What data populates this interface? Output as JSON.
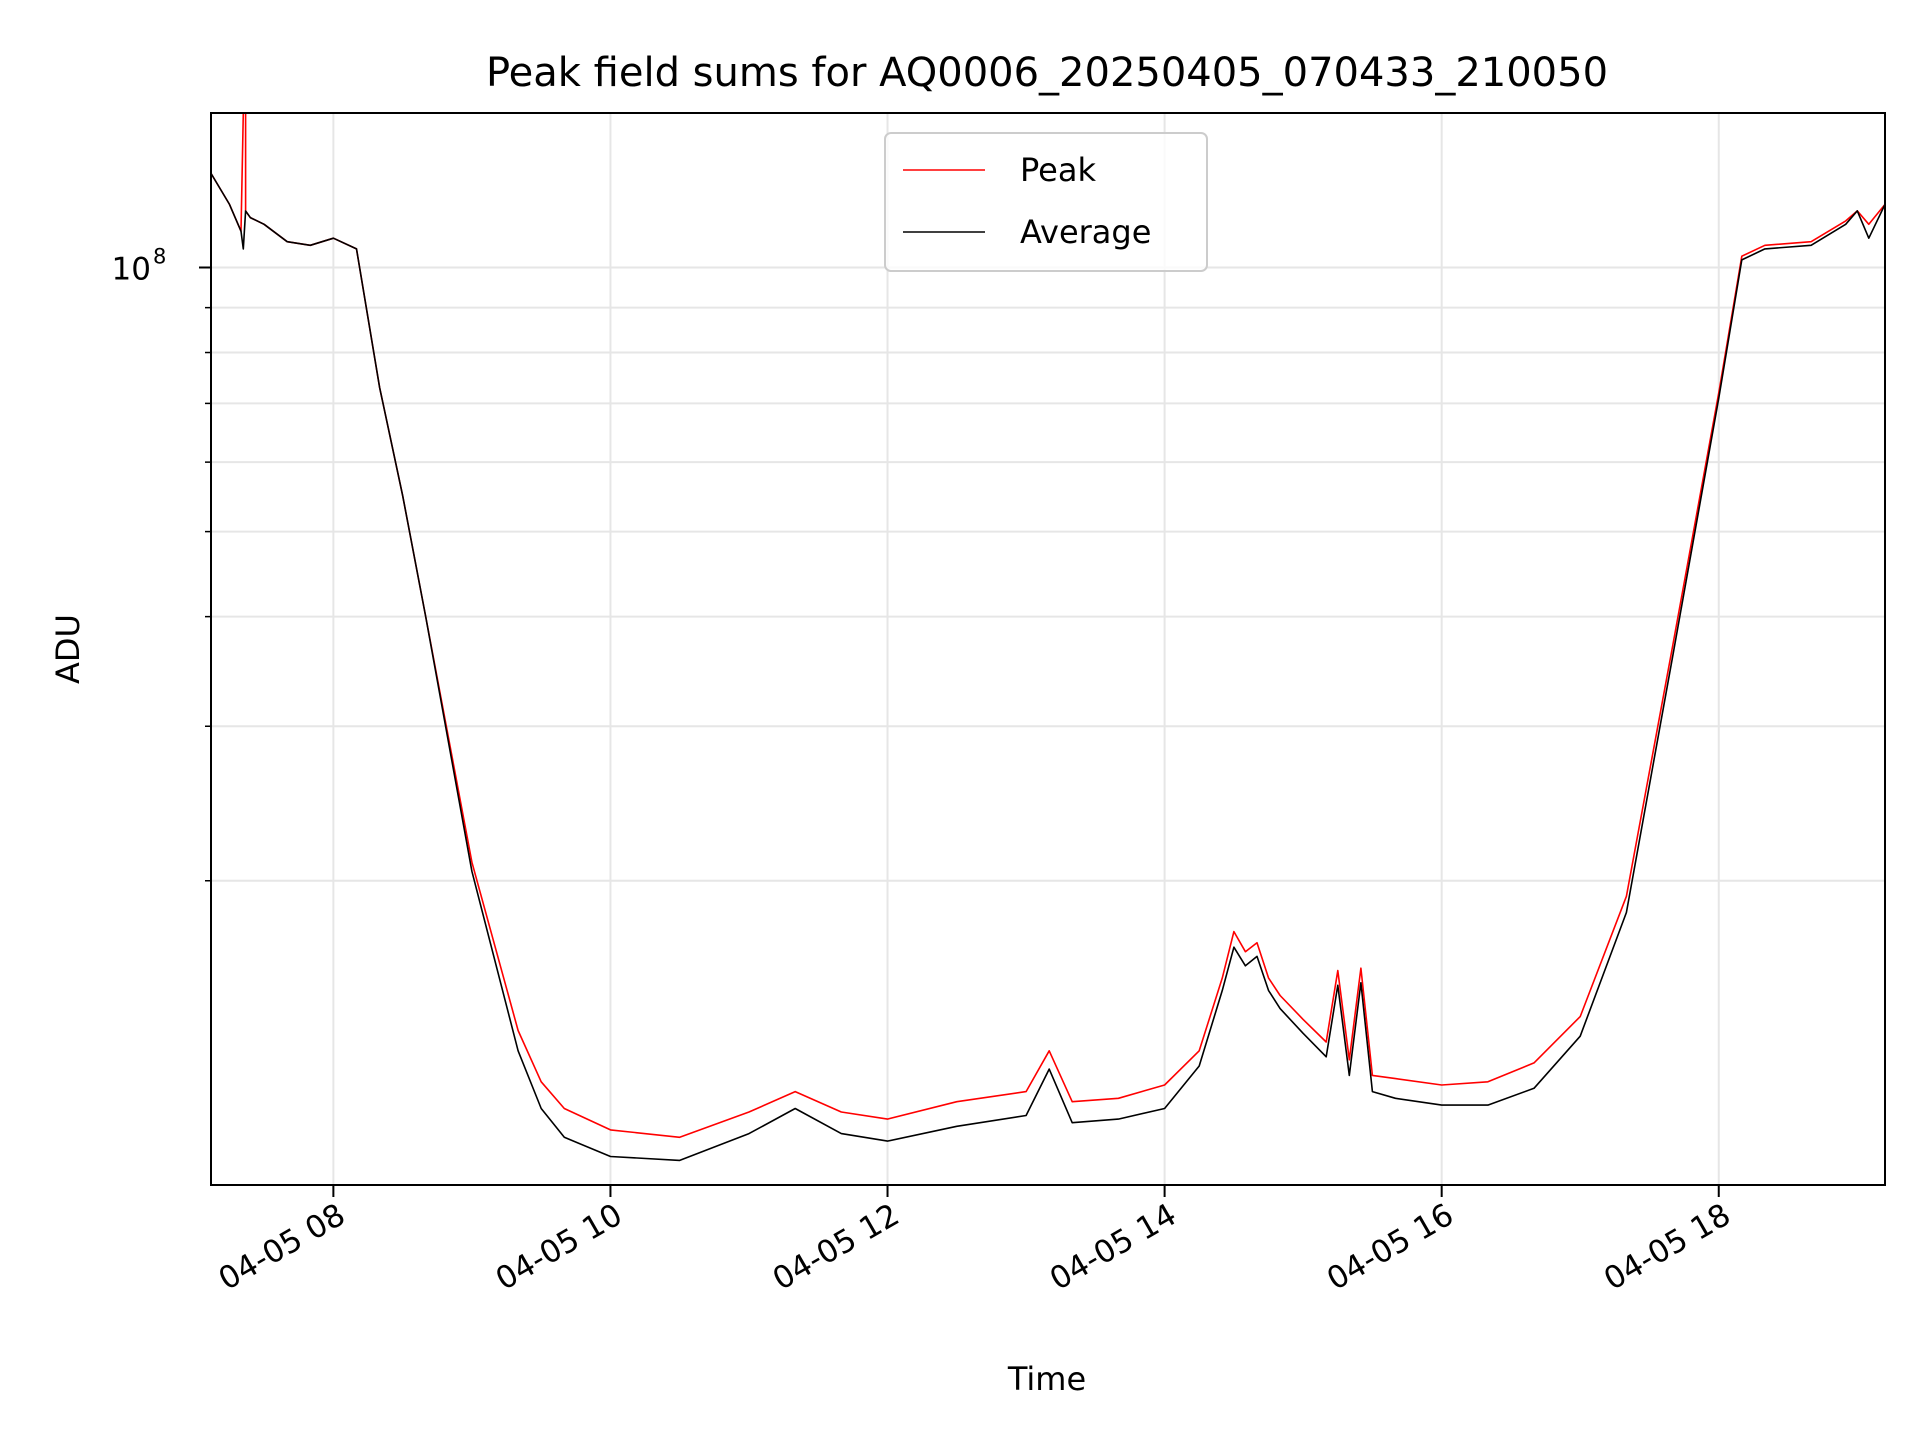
{
  "chart_data": {
    "type": "line",
    "title": "Peak field sums for AQ0006_20250405_070433_210050",
    "xlabel": "Time",
    "ylabel": "ADU",
    "x_scale": "time",
    "y_scale": "log",
    "xlim": [
      "04-05 07:07",
      "04-05 19:12"
    ],
    "ylim": [
      9000000,
      150000000
    ],
    "x_ticks": [
      {
        "t": "04-05 08:00",
        "label": "04-05 08"
      },
      {
        "t": "04-05 10:00",
        "label": "04-05 10"
      },
      {
        "t": "04-05 12:00",
        "label": "04-05 12"
      },
      {
        "t": "04-05 14:00",
        "label": "04-05 14"
      },
      {
        "t": "04-05 16:00",
        "label": "04-05 16"
      },
      {
        "t": "04-05 18:00",
        "label": "04-05 18"
      }
    ],
    "y_ticks": [
      {
        "value": 100000000,
        "base": "10",
        "exp": "8"
      }
    ],
    "y_minor_ticks": [
      20000000,
      30000000,
      40000000,
      50000000,
      60000000,
      70000000,
      80000000,
      90000000
    ],
    "grid": true,
    "legend": {
      "placement": "top-center",
      "entries": [
        {
          "name": "Peak",
          "color": "#ff0000"
        },
        {
          "name": "Average",
          "color": "#000000"
        }
      ]
    },
    "series": [
      {
        "name": "Peak",
        "color": "#ff0000",
        "x": [
          "04-05 07:07",
          "04-05 07:15",
          "04-05 07:20",
          "04-05 07:21",
          "04-05 07:22",
          "04-05 07:22",
          "04-05 07:23",
          "04-05 07:24",
          "04-05 07:30",
          "04-05 07:40",
          "04-05 07:50",
          "04-05 08:00",
          "04-05 08:10",
          "04-05 08:20",
          "04-05 08:30",
          "04-05 08:40",
          "04-05 09:00",
          "04-05 09:20",
          "04-05 09:30",
          "04-05 09:40",
          "04-05 10:00",
          "04-05 10:30",
          "04-05 11:00",
          "04-05 11:20",
          "04-05 11:40",
          "04-05 12:00",
          "04-05 12:30",
          "04-05 13:00",
          "04-05 13:10",
          "04-05 13:20",
          "04-05 13:40",
          "04-05 14:00",
          "04-05 14:15",
          "04-05 14:25",
          "04-05 14:30",
          "04-05 14:35",
          "04-05 14:40",
          "04-05 14:45",
          "04-05 14:50",
          "04-05 15:00",
          "04-05 15:10",
          "04-05 15:15",
          "04-05 15:20",
          "04-05 15:25",
          "04-05 15:30",
          "04-05 15:40",
          "04-05 16:00",
          "04-05 16:20",
          "04-05 16:40",
          "04-05 17:00",
          "04-05 17:20",
          "04-05 17:40",
          "04-05 18:00",
          "04-05 18:10",
          "04-05 18:20",
          "04-05 18:40",
          "04-05 18:55",
          "04-05 19:00",
          "04-05 19:05",
          "04-05 19:12"
        ],
        "values": [
          128000000,
          118000000,
          110000000,
          150000000,
          150000000,
          116000000,
          115000000,
          114000000,
          112000000,
          107000000,
          106000000,
          108000000,
          105000000,
          73000000,
          55000000,
          40000000,
          21000000,
          13500000,
          11800000,
          11000000,
          10400000,
          10200000,
          10900000,
          11500000,
          10900000,
          10700000,
          11200000,
          11500000,
          12800000,
          11200000,
          11300000,
          11700000,
          12800000,
          15500000,
          17500000,
          16600000,
          17000000,
          15500000,
          14800000,
          13900000,
          13100000,
          15800000,
          12500000,
          15900000,
          12000000,
          11900000,
          11700000,
          11800000,
          12400000,
          14000000,
          19200000,
          37000000,
          72000000,
          103000000,
          106000000,
          107000000,
          113000000,
          116000000,
          112000000,
          118000000
        ]
      },
      {
        "name": "Average",
        "color": "#000000",
        "x": [
          "04-05 07:07",
          "04-05 07:15",
          "04-05 07:20",
          "04-05 07:21",
          "04-05 07:22",
          "04-05 07:23",
          "04-05 07:24",
          "04-05 07:30",
          "04-05 07:40",
          "04-05 07:50",
          "04-05 08:00",
          "04-05 08:10",
          "04-05 08:20",
          "04-05 08:30",
          "04-05 08:40",
          "04-05 09:00",
          "04-05 09:20",
          "04-05 09:30",
          "04-05 09:40",
          "04-05 10:00",
          "04-05 10:30",
          "04-05 11:00",
          "04-05 11:20",
          "04-05 11:40",
          "04-05 12:00",
          "04-05 12:30",
          "04-05 13:00",
          "04-05 13:10",
          "04-05 13:20",
          "04-05 13:40",
          "04-05 14:00",
          "04-05 14:15",
          "04-05 14:25",
          "04-05 14:30",
          "04-05 14:35",
          "04-05 14:40",
          "04-05 14:45",
          "04-05 14:50",
          "04-05 15:00",
          "04-05 15:10",
          "04-05 15:15",
          "04-05 15:20",
          "04-05 15:25",
          "04-05 15:30",
          "04-05 15:40",
          "04-05 16:00",
          "04-05 16:20",
          "04-05 16:40",
          "04-05 17:00",
          "04-05 17:20",
          "04-05 17:40",
          "04-05 18:00",
          "04-05 18:10",
          "04-05 18:20",
          "04-05 18:40",
          "04-05 18:55",
          "04-05 19:00",
          "04-05 19:05",
          "04-05 19:12"
        ],
        "values": [
          128000000,
          118000000,
          110000000,
          105000000,
          116000000,
          115000000,
          114000000,
          112000000,
          107000000,
          106000000,
          108000000,
          105000000,
          73000000,
          55000000,
          40000000,
          20500000,
          12800000,
          11000000,
          10200000,
          9700000,
          9600000,
          10300000,
          11000000,
          10300000,
          10100000,
          10500000,
          10800000,
          12200000,
          10600000,
          10700000,
          11000000,
          12300000,
          15000000,
          16800000,
          16000000,
          16400000,
          15000000,
          14300000,
          13400000,
          12600000,
          15200000,
          12000000,
          15300000,
          11500000,
          11300000,
          11100000,
          11100000,
          11600000,
          13300000,
          18400000,
          36000000,
          71000000,
          102000000,
          105000000,
          106000000,
          112000000,
          116000000,
          108000000,
          118000000
        ]
      }
    ]
  }
}
